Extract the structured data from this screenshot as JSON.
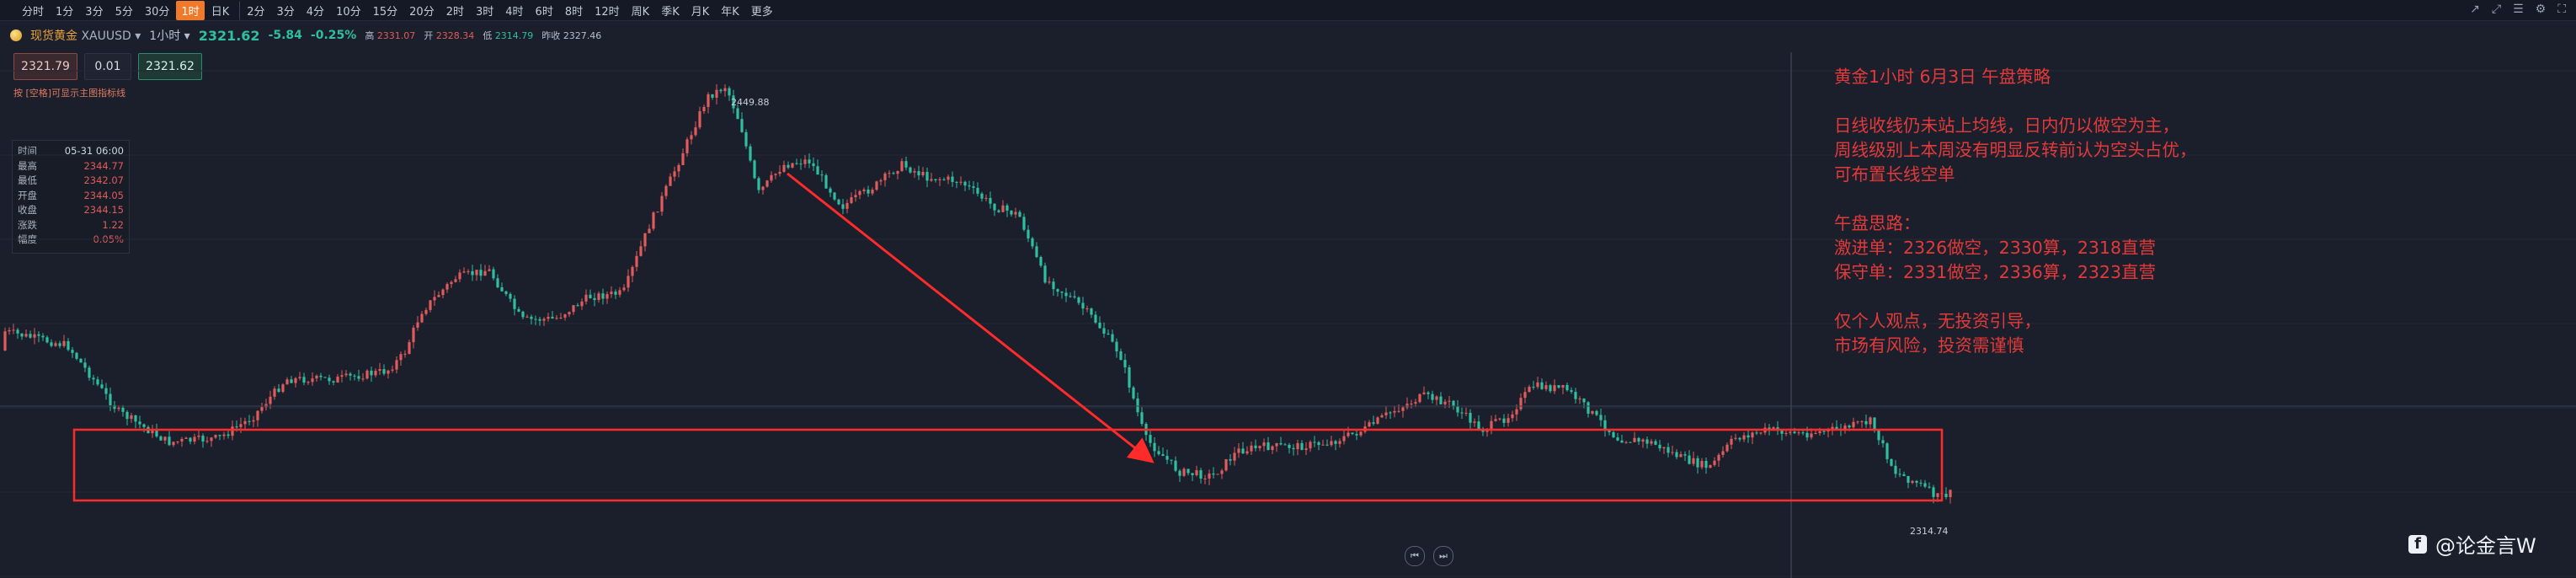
{
  "timeframes": [
    "分时",
    "1分",
    "3分",
    "5分",
    "30分",
    "1时",
    "日K",
    "2分",
    "3分",
    "4分",
    "10分",
    "15分",
    "20分",
    "2时",
    "3时",
    "4时",
    "6时",
    "8时",
    "12时",
    "周K",
    "季K",
    "月K",
    "年K",
    "更多"
  ],
  "active_timeframe": "1时",
  "symbol": {
    "name": "现货黄金",
    "code": "XAUUSD",
    "interval": "1小时",
    "price": "2321.62",
    "change": "-5.84",
    "change_pct": "-0.25%",
    "high_label": "高",
    "high": "2331.07",
    "open_label": "开",
    "open": "2328.34",
    "low_label": "低",
    "low": "2314.79",
    "prev_label": "昨收",
    "prev": "2327.46"
  },
  "trade": {
    "sell": "2321.79",
    "qty": "0.01",
    "buy": "2321.62",
    "hint": "按 [空格]可显示主图指标线"
  },
  "ohlc_panel": [
    {
      "label": "时间",
      "value": "05-31 06:00"
    },
    {
      "label": "最高",
      "value": "2344.77"
    },
    {
      "label": "最低",
      "value": "2342.07"
    },
    {
      "label": "开盘",
      "value": "2344.05"
    },
    {
      "label": "收盘",
      "value": "2344.15"
    },
    {
      "label": "涨跌",
      "value": "1.22"
    },
    {
      "label": "幅度",
      "value": "0.05%"
    }
  ],
  "price_labels": {
    "peak": "2449.88",
    "low": "2314.74"
  },
  "strategy": {
    "title": "黄金1小时 6月3日 午盘策略",
    "para1": [
      "日线收线仍未站上均线，日内仍以做空为主，",
      "周线级别上本周没有明显反转前认为空头占优，",
      "可布置长线空单"
    ],
    "para2": [
      "午盘思路：",
      "激进单：2326做空，2330算，2318直营",
      "保守单：2331做空，2336算，2323直营"
    ],
    "para3": [
      "仅个人观点，无投资引导，",
      "市场有风险，投资需谨慎"
    ]
  },
  "watermark": "@论金言W",
  "colors": {
    "up": "#e05b5b",
    "down": "#2fbf9f",
    "annotation": "#e23a3a",
    "background": "#1a1f2b"
  },
  "chart_data": {
    "type": "candlestick",
    "annotations": [
      "support-box",
      "down-arrow"
    ],
    "peak_label": "2449.88",
    "low_label": "2314.74"
  }
}
